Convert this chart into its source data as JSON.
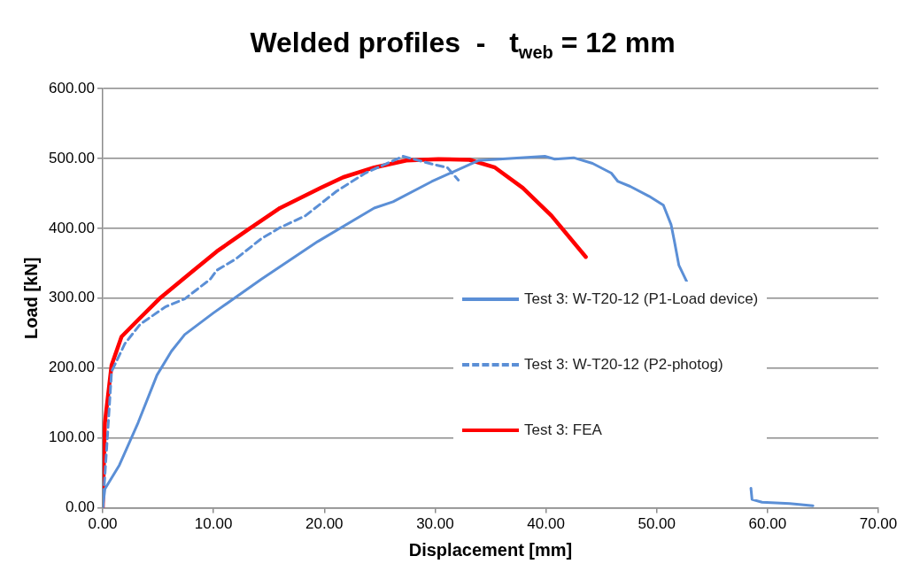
{
  "chart_data": {
    "type": "line",
    "title": "Welded profiles  -   t$_{web}$ = 12 mm",
    "xlabel": "Displacement [mm]",
    "ylabel": "Load [kN]",
    "xlim": [
      0,
      70
    ],
    "ylim": [
      0,
      600
    ],
    "xticks": [
      {
        "value": 0,
        "label": "0.00"
      },
      {
        "value": 10,
        "label": "10.00"
      },
      {
        "value": 20,
        "label": "20.00"
      },
      {
        "value": 30,
        "label": "30.00"
      },
      {
        "value": 40,
        "label": "40.00"
      },
      {
        "value": 50,
        "label": "50.00"
      },
      {
        "value": 60,
        "label": "60.00"
      },
      {
        "value": 70,
        "label": "70.00"
      }
    ],
    "yticks": [
      {
        "value": 0,
        "label": "0.00"
      },
      {
        "value": 100,
        "label": "100.00"
      },
      {
        "value": 200,
        "label": "200.00"
      },
      {
        "value": 300,
        "label": "300.00"
      },
      {
        "value": 400,
        "label": "400.00"
      },
      {
        "value": 500,
        "label": "500.00"
      },
      {
        "value": 600,
        "label": "600.00"
      }
    ],
    "grid": "y",
    "legend": "right",
    "marker": "none",
    "series": [
      {
        "name": "Test 3: W-T20-12 (P1-Load device)",
        "color": "#5b8fd6",
        "line_style": "solid",
        "x": [
          0,
          0.2,
          1.5,
          3.2,
          4.9,
          6.2,
          7.4,
          10,
          14.3,
          19.4,
          24.5,
          26.2,
          29.7,
          33.9,
          39.9,
          40.8,
          42.5,
          44.2,
          45.9,
          46.5,
          47.6,
          49.3,
          50.6,
          51.3,
          51.6,
          52,
          52.7,
          55,
          58.5,
          58.6,
          59.5,
          62,
          64.1
        ],
        "values": [
          0,
          27,
          61,
          122,
          190,
          224,
          248,
          279,
          327,
          381,
          429,
          438,
          467,
          497,
          503,
          499,
          501,
          493,
          479,
          467,
          460,
          446,
          433,
          405,
          381,
          347,
          324,
          null,
          28,
          12,
          8,
          6,
          3
        ]
      },
      {
        "name": "Test 3: W-T20-12 (P2-photog)",
        "color": "#5b8fd6",
        "line_style": "dashed",
        "x": [
          0,
          0.4,
          0.8,
          2,
          3.4,
          5.7,
          7.4,
          9.7,
          10.3,
          12,
          14.3,
          16,
          18.3,
          21.1,
          23.7,
          27.1,
          29.7,
          31.1,
          32.1
        ],
        "values": [
          0,
          95,
          195,
          235,
          263,
          288,
          299,
          327,
          340,
          356,
          385,
          401,
          418,
          453,
          479,
          503,
          492,
          487,
          469
        ]
      },
      {
        "name": "Test 3: FEA",
        "color": "#ff0000",
        "line_style": "solid",
        "x": [
          0,
          0.2,
          0.8,
          1.7,
          3.2,
          5.1,
          8,
          10.3,
          13.2,
          16,
          19.7,
          21.7,
          24.5,
          27.4,
          30.3,
          33.1,
          35.4,
          37.9,
          40.5,
          43.6
        ],
        "values": [
          0,
          122,
          204,
          245,
          269,
          299,
          337,
          367,
          399,
          429,
          458,
          473,
          487,
          497,
          499,
          498,
          487,
          458,
          418,
          359
        ]
      }
    ]
  }
}
